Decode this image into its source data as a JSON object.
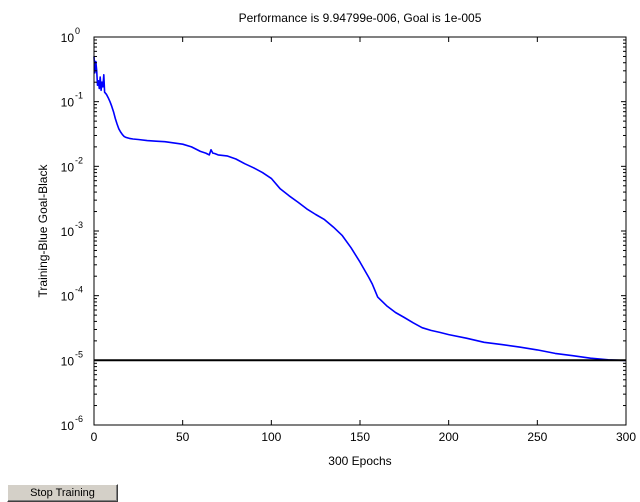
{
  "controls": {
    "stop_training_label": "Stop Training"
  },
  "chart_data": {
    "type": "line",
    "title": "Performance is 9.94799e-006, Goal is 1e-005",
    "xlabel": "300 Epochs",
    "ylabel": "Training-Blue  Goal-Black",
    "xlim": [
      0,
      300
    ],
    "ylim": [
      1e-06,
      1
    ],
    "yscale": "log",
    "x_ticks": [
      0,
      50,
      100,
      150,
      200,
      250,
      300
    ],
    "y_ticks": [
      {
        "base": "10",
        "exp": "0",
        "value": 1
      },
      {
        "base": "10",
        "exp": "-1",
        "value": 0.1
      },
      {
        "base": "10",
        "exp": "-2",
        "value": 0.01
      },
      {
        "base": "10",
        "exp": "-3",
        "value": 0.001
      },
      {
        "base": "10",
        "exp": "-4",
        "value": 0.0001
      },
      {
        "base": "10",
        "exp": "-5",
        "value": 1e-05
      },
      {
        "base": "10",
        "exp": "-6",
        "value": 1e-06
      }
    ],
    "grid": false,
    "series": [
      {
        "color": "#0000ff",
        "x": [
          0,
          0.5,
          1,
          1.5,
          2,
          2.5,
          3,
          3.5,
          4,
          4.5,
          5,
          5.5,
          6,
          7,
          8,
          9,
          10,
          11,
          12,
          13,
          14,
          15,
          16,
          17,
          18,
          20,
          22,
          25,
          30,
          35,
          40,
          45,
          50,
          55,
          60,
          63,
          65,
          66,
          67,
          68,
          70,
          75,
          80,
          85,
          90,
          95,
          100,
          105,
          110,
          115,
          120,
          125,
          130,
          135,
          140,
          145,
          150,
          155,
          157,
          160,
          165,
          170,
          175,
          180,
          185,
          190,
          195,
          200,
          210,
          220,
          230,
          240,
          250,
          260,
          270,
          280,
          290,
          300
        ],
        "y": [
          0.5,
          0.28,
          0.42,
          0.3,
          0.18,
          0.21,
          0.16,
          0.24,
          0.15,
          0.2,
          0.17,
          0.26,
          0.14,
          0.13,
          0.115,
          0.1,
          0.085,
          0.07,
          0.055,
          0.045,
          0.038,
          0.034,
          0.031,
          0.029,
          0.028,
          0.027,
          0.0265,
          0.026,
          0.025,
          0.0245,
          0.024,
          0.023,
          0.022,
          0.02,
          0.017,
          0.016,
          0.015,
          0.018,
          0.016,
          0.0158,
          0.015,
          0.0145,
          0.013,
          0.011,
          0.0095,
          0.008,
          0.0065,
          0.0045,
          0.0035,
          0.0028,
          0.0022,
          0.0018,
          0.0015,
          0.00115,
          0.00085,
          0.00055,
          0.00033,
          0.00019,
          0.00015,
          9.5e-05,
          7e-05,
          5.5e-05,
          4.6e-05,
          3.8e-05,
          3.2e-05,
          2.9e-05,
          2.7e-05,
          2.5e-05,
          2.2e-05,
          1.9e-05,
          1.75e-05,
          1.6e-05,
          1.45e-05,
          1.28e-05,
          1.18e-05,
          1.08e-05,
          1.02e-05,
          9.95e-06
        ]
      },
      {
        "color": "#000000",
        "x": [
          0,
          300
        ],
        "y": [
          1e-05,
          1e-05
        ]
      }
    ]
  }
}
